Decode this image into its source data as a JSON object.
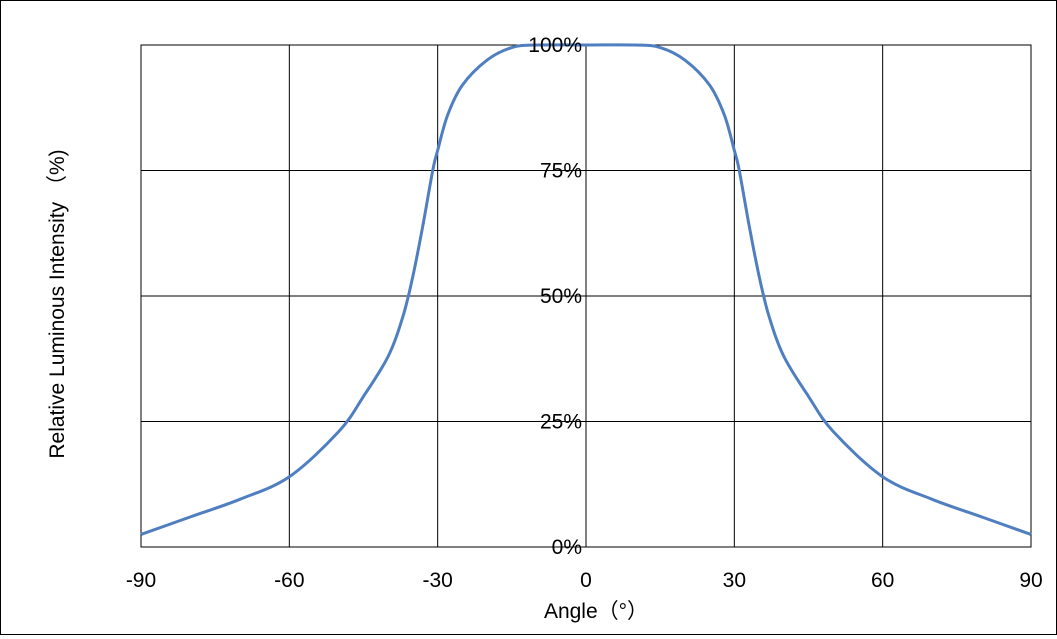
{
  "chart_data": {
    "type": "line",
    "title": "",
    "xlabel": "Angle（°）",
    "ylabel": "Relative Luminous Intensity （%)",
    "xlim": [
      -90,
      90
    ],
    "ylim": [
      0,
      100
    ],
    "x_ticks": [
      -90,
      -60,
      -30,
      0,
      30,
      60,
      90
    ],
    "x_tick_labels": [
      "-90",
      "-60",
      "-30",
      "0",
      "30",
      "60",
      "90"
    ],
    "y_ticks": [
      0,
      25,
      50,
      75,
      100
    ],
    "y_tick_labels": [
      "0%",
      "25%",
      "50%",
      "75%",
      "100%"
    ],
    "grid": true,
    "line_color": "#4f7fc0",
    "series": [
      {
        "x": [
          -90,
          -80,
          -70,
          -60,
          -50,
          -45,
          -40,
          -37,
          -35,
          -33,
          -31,
          -30,
          -28,
          -25,
          -20,
          -15,
          -10,
          0,
          10,
          15,
          20,
          25,
          28,
          30,
          31,
          33,
          35,
          37,
          40,
          45,
          50,
          60,
          70,
          80,
          90
        ],
        "values": [
          2.5,
          6,
          9.5,
          14,
          23,
          30,
          38,
          46,
          54,
          64,
          75,
          79,
          86,
          92,
          97,
          99.5,
          100,
          100,
          100,
          99.5,
          97,
          92,
          86,
          79,
          75,
          64,
          54,
          46,
          38,
          30,
          23,
          14,
          9.5,
          6,
          2.5
        ]
      }
    ]
  }
}
